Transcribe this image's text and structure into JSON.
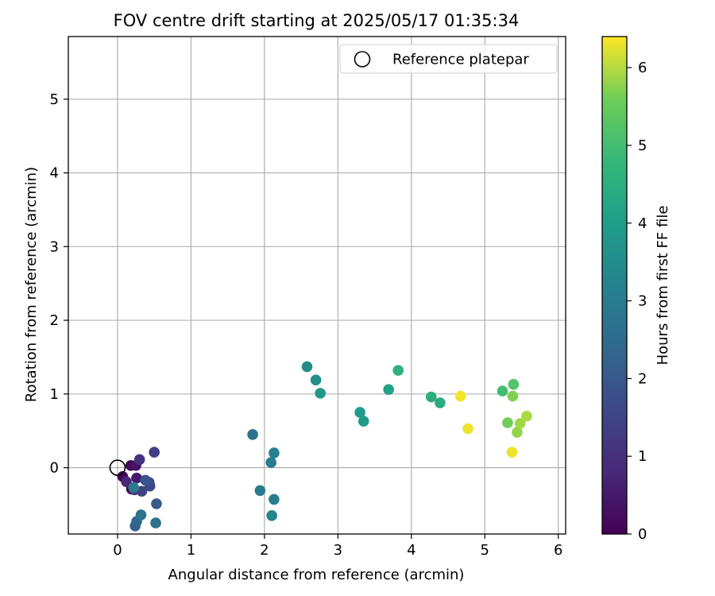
{
  "chart_data": {
    "type": "scatter",
    "title": "FOV centre drift starting at 2025/05/17 01:35:34",
    "xlabel": "Angular distance from reference (arcmin)",
    "ylabel": "Rotation from reference (arcmin)",
    "xlim": [
      -0.67,
      6.1
    ],
    "ylim": [
      -0.9,
      5.85
    ],
    "xticks": [
      "0",
      "1",
      "2",
      "3",
      "4",
      "5",
      "6"
    ],
    "yticks": [
      "0",
      "1",
      "2",
      "3",
      "4",
      "5"
    ],
    "grid": true,
    "legend": {
      "placement": "top-right",
      "entries": [
        "Reference platepar"
      ]
    },
    "reference_point": {
      "x": 0,
      "y": 0
    },
    "colorbar": {
      "label": "Hours from first FF file",
      "colormap": "viridis",
      "range": [
        0,
        6.4
      ],
      "ticks": [
        "0",
        "1",
        "2",
        "3",
        "4",
        "5",
        "6"
      ]
    },
    "points": [
      {
        "x": 0.07,
        "y": -0.12,
        "c": 0.1
      },
      {
        "x": 0.18,
        "y": 0.03,
        "c": 0.15
      },
      {
        "x": 0.25,
        "y": 0.03,
        "c": 0.35
      },
      {
        "x": 0.19,
        "y": -0.29,
        "c": 0.2
      },
      {
        "x": 0.26,
        "y": -0.14,
        "c": 0.5
      },
      {
        "x": 0.12,
        "y": -0.19,
        "c": 0.8
      },
      {
        "x": 0.23,
        "y": -0.3,
        "c": 1.0
      },
      {
        "x": 0.3,
        "y": 0.11,
        "c": 1.1
      },
      {
        "x": 0.5,
        "y": 0.21,
        "c": 1.3
      },
      {
        "x": 0.33,
        "y": -0.32,
        "c": 1.4
      },
      {
        "x": 0.43,
        "y": -0.2,
        "c": 1.5
      },
      {
        "x": 0.44,
        "y": -0.25,
        "c": 1.6
      },
      {
        "x": 0.38,
        "y": -0.17,
        "c": 1.9
      },
      {
        "x": 0.53,
        "y": -0.49,
        "c": 2.0
      },
      {
        "x": 0.24,
        "y": -0.79,
        "c": 2.2
      },
      {
        "x": 0.26,
        "y": -0.73,
        "c": 2.4
      },
      {
        "x": 0.52,
        "y": -0.75,
        "c": 2.6
      },
      {
        "x": 0.32,
        "y": -0.64,
        "c": 2.7
      },
      {
        "x": 0.22,
        "y": -0.27,
        "c": 3.0
      },
      {
        "x": 1.84,
        "y": 0.45,
        "c": 2.7
      },
      {
        "x": 1.94,
        "y": -0.31,
        "c": 3.0
      },
      {
        "x": 2.09,
        "y": 0.07,
        "c": 3.0
      },
      {
        "x": 2.13,
        "y": 0.2,
        "c": 3.2
      },
      {
        "x": 2.1,
        "y": -0.65,
        "c": 3.3
      },
      {
        "x": 2.13,
        "y": -0.43,
        "c": 3.1
      },
      {
        "x": 2.58,
        "y": 1.37,
        "c": 3.5
      },
      {
        "x": 2.7,
        "y": 1.19,
        "c": 3.6
      },
      {
        "x": 2.76,
        "y": 1.01,
        "c": 3.8
      },
      {
        "x": 3.3,
        "y": 0.75,
        "c": 3.9
      },
      {
        "x": 3.35,
        "y": 0.63,
        "c": 3.9
      },
      {
        "x": 3.69,
        "y": 1.06,
        "c": 4.1
      },
      {
        "x": 3.82,
        "y": 1.32,
        "c": 4.6
      },
      {
        "x": 4.27,
        "y": 0.96,
        "c": 4.5
      },
      {
        "x": 4.39,
        "y": 0.88,
        "c": 4.4
      },
      {
        "x": 4.67,
        "y": 0.97,
        "c": 6.35
      },
      {
        "x": 4.77,
        "y": 0.53,
        "c": 6.3
      },
      {
        "x": 5.24,
        "y": 1.04,
        "c": 5.0
      },
      {
        "x": 5.39,
        "y": 1.13,
        "c": 5.2
      },
      {
        "x": 5.38,
        "y": 0.97,
        "c": 5.7
      },
      {
        "x": 5.31,
        "y": 0.61,
        "c": 5.6
      },
      {
        "x": 5.44,
        "y": 0.48,
        "c": 5.8
      },
      {
        "x": 5.48,
        "y": 0.6,
        "c": 5.9
      },
      {
        "x": 5.57,
        "y": 0.7,
        "c": 5.95
      },
      {
        "x": 5.37,
        "y": 0.21,
        "c": 6.3
      }
    ]
  }
}
